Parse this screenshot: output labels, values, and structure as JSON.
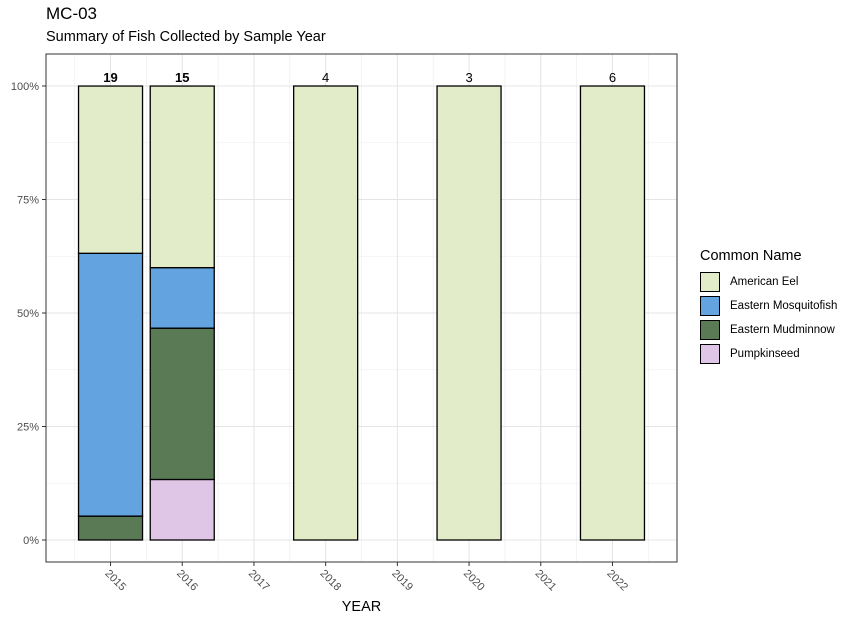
{
  "chart_data": {
    "type": "bar",
    "stacked": "percent",
    "title": "MC-03",
    "subtitle": "Summary of Fish Collected by Sample Year",
    "xlabel": "YEAR",
    "ylabel": "",
    "categories": [
      "2015",
      "2016",
      "2017",
      "2018",
      "2019",
      "2020",
      "2021",
      "2022"
    ],
    "y_ticks": [
      "0%",
      "25%",
      "50%",
      "75%",
      "100%"
    ],
    "ylim": [
      0,
      1
    ],
    "bars": [
      {
        "year": "2015",
        "total": "19",
        "label_bold": true,
        "segments": [
          {
            "species": "Eastern Mudminnow",
            "fraction": 0.0526
          },
          {
            "species": "Eastern Mosquitofish",
            "fraction": 0.5789
          },
          {
            "species": "American Eel",
            "fraction": 0.3684
          }
        ]
      },
      {
        "year": "2016",
        "total": "15",
        "label_bold": true,
        "segments": [
          {
            "species": "Pumpkinseed",
            "fraction": 0.1333
          },
          {
            "species": "Eastern Mudminnow",
            "fraction": 0.3333
          },
          {
            "species": "Eastern Mosquitofish",
            "fraction": 0.1333
          },
          {
            "species": "American Eel",
            "fraction": 0.4
          }
        ]
      },
      {
        "year": "2018",
        "total": "4",
        "label_bold": false,
        "segments": [
          {
            "species": "American Eel",
            "fraction": 1.0
          }
        ]
      },
      {
        "year": "2020",
        "total": "3",
        "label_bold": false,
        "segments": [
          {
            "species": "American Eel",
            "fraction": 1.0
          }
        ]
      },
      {
        "year": "2022",
        "total": "6",
        "label_bold": false,
        "segments": [
          {
            "species": "American Eel",
            "fraction": 1.0
          }
        ]
      }
    ],
    "legend": {
      "title": "Common Name",
      "position": "right",
      "entries": [
        {
          "name": "American Eel",
          "color": "#e2ecc8"
        },
        {
          "name": "Eastern Mosquitofish",
          "color": "#62a3e0"
        },
        {
          "name": "Eastern Mudminnow",
          "color": "#5a7a56"
        },
        {
          "name": "Pumpkinseed",
          "color": "#dfc6e6"
        }
      ]
    },
    "grid": true
  }
}
